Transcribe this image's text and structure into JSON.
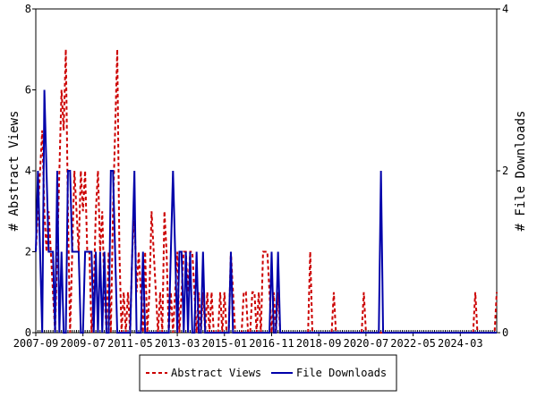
{
  "chart_data": {
    "type": "line",
    "ylabel": "# Abstract Views",
    "y2label": "# File Downloads",
    "x": [
      "2007-09",
      "2007-10",
      "2007-11",
      "2007-12",
      "2008-01",
      "2008-02",
      "2008-03",
      "2008-04",
      "2008-05",
      "2008-06",
      "2008-07",
      "2008-08",
      "2008-09",
      "2008-10",
      "2008-11",
      "2008-12",
      "2009-01",
      "2009-02",
      "2009-03",
      "2009-04",
      "2009-05",
      "2009-06",
      "2009-07",
      "2009-08",
      "2009-09",
      "2009-10",
      "2009-11",
      "2009-12",
      "2010-01",
      "2010-02",
      "2010-03",
      "2010-04",
      "2010-05",
      "2010-06",
      "2010-07",
      "2010-08",
      "2010-09",
      "2010-10",
      "2010-11",
      "2010-12",
      "2011-01",
      "2011-02",
      "2011-03",
      "2011-04",
      "2011-05",
      "2011-06",
      "2011-07",
      "2011-08",
      "2011-09",
      "2011-10",
      "2011-11",
      "2011-12",
      "2012-01",
      "2012-02",
      "2012-03",
      "2012-04",
      "2012-05",
      "2012-06",
      "2012-07",
      "2012-08",
      "2012-09",
      "2012-10",
      "2012-11",
      "2012-12",
      "2013-01",
      "2013-02",
      "2013-03",
      "2013-04",
      "2013-05",
      "2013-06",
      "2013-07",
      "2013-08",
      "2013-09",
      "2013-10",
      "2013-11",
      "2013-12",
      "2014-01",
      "2014-02",
      "2014-03",
      "2014-04",
      "2014-05",
      "2014-06",
      "2014-07",
      "2014-08",
      "2014-09",
      "2014-10",
      "2014-11",
      "2014-12",
      "2015-01",
      "2015-02",
      "2015-03",
      "2015-04",
      "2015-05",
      "2015-06",
      "2015-07",
      "2015-08",
      "2015-09",
      "2015-10",
      "2015-11",
      "2015-12",
      "2016-01",
      "2016-02",
      "2016-03",
      "2016-04",
      "2016-05",
      "2016-06",
      "2016-07",
      "2016-08",
      "2016-09",
      "2016-10",
      "2016-11",
      "2016-12",
      "2017-01",
      "2017-02",
      "2017-03",
      "2017-04",
      "2017-05",
      "2017-06",
      "2017-07",
      "2017-08",
      "2017-09",
      "2017-10",
      "2017-11",
      "2017-12",
      "2018-01",
      "2018-02",
      "2018-03",
      "2018-04",
      "2018-05",
      "2018-06",
      "2018-07",
      "2018-08",
      "2018-09",
      "2018-10",
      "2018-11",
      "2018-12",
      "2019-01",
      "2019-02",
      "2019-03",
      "2019-04",
      "2019-05",
      "2019-06",
      "2019-07",
      "2019-08",
      "2019-09",
      "2019-10",
      "2019-11",
      "2019-12",
      "2020-01",
      "2020-02",
      "2020-03",
      "2020-04",
      "2020-05",
      "2020-06",
      "2020-07",
      "2020-08",
      "2020-09",
      "2020-10",
      "2020-11",
      "2020-12",
      "2021-01",
      "2021-02",
      "2021-03",
      "2021-04",
      "2021-05",
      "2021-06",
      "2021-07",
      "2021-08",
      "2021-09",
      "2021-10",
      "2021-11",
      "2021-12",
      "2022-01",
      "2022-02",
      "2022-03",
      "2022-04",
      "2022-05",
      "2022-06",
      "2022-07",
      "2022-08",
      "2022-09",
      "2022-10",
      "2022-11",
      "2022-12",
      "2023-01",
      "2023-02",
      "2023-03",
      "2023-04",
      "2023-05",
      "2023-06",
      "2023-07",
      "2023-08",
      "2023-09",
      "2023-10",
      "2023-11",
      "2023-12",
      "2024-01",
      "2024-02",
      "2024-03",
      "2024-04",
      "2024-05",
      "2024-06",
      "2024-07",
      "2024-08",
      "2024-09",
      "2024-10",
      "2024-11",
      "2024-12",
      "2025-01",
      "2025-02",
      "2025-03",
      "2025-04",
      "2025-05",
      "2025-06",
      "2025-07",
      "2025-08"
    ],
    "xticks": [
      "2007-09",
      "2009-07",
      "2011-05",
      "2013-03",
      "2015-01",
      "2016-11",
      "2018-09",
      "2020-07",
      "2022-05",
      "2024-03"
    ],
    "ylim": [
      0,
      8
    ],
    "yticks": [
      0,
      2,
      4,
      6,
      8
    ],
    "y2lim": [
      0,
      4
    ],
    "y2ticks": [
      0,
      2,
      4
    ],
    "series": [
      {
        "name": "Abstract Views",
        "color": "#cc0000",
        "dashed": true,
        "values": [
          2,
          3,
          4,
          5,
          3,
          2,
          3,
          2,
          1,
          0,
          2,
          4,
          6,
          5,
          7,
          3,
          0,
          2,
          4,
          3,
          2,
          4,
          3,
          4,
          2,
          2,
          0,
          1,
          3,
          4,
          2,
          3,
          1,
          0,
          2,
          0,
          3,
          5,
          7,
          2,
          0,
          1,
          0,
          1,
          0,
          2,
          3,
          1,
          2,
          1,
          0,
          2,
          0,
          1,
          3,
          2,
          1,
          0,
          1,
          0,
          3,
          2,
          0,
          1,
          0,
          1,
          2,
          0,
          1,
          2,
          2,
          1,
          2,
          2,
          1,
          0,
          1,
          0,
          1,
          0,
          1,
          0,
          1,
          0,
          0,
          0,
          1,
          0,
          1,
          0,
          0,
          2,
          1,
          0,
          0,
          0,
          0,
          1,
          1,
          0,
          0,
          1,
          1,
          0,
          1,
          0,
          2,
          2,
          2,
          1,
          0,
          1,
          0,
          1,
          0,
          0,
          0,
          0,
          0,
          0,
          0,
          0,
          0,
          0,
          0,
          0,
          0,
          0,
          2,
          0,
          0,
          0,
          0,
          0,
          0,
          0,
          0,
          0,
          0,
          1,
          0,
          0,
          0,
          0,
          0,
          0,
          0,
          0,
          0,
          0,
          0,
          0,
          0,
          1,
          0,
          0,
          0,
          0,
          0,
          0,
          0,
          0,
          0,
          0,
          0,
          0,
          0,
          0,
          0,
          0,
          0,
          0,
          0,
          0,
          0,
          0,
          0,
          0,
          0,
          0,
          0,
          0,
          0,
          0,
          0,
          0,
          0,
          0,
          0,
          0,
          0,
          0,
          0,
          0,
          0,
          0,
          0,
          0,
          0,
          0,
          0,
          0,
          0,
          0,
          0,
          1,
          0,
          0,
          0,
          0,
          0,
          0,
          0,
          0,
          0,
          1
        ]
      },
      {
        "name": "File Downloads",
        "color": "#0000aa",
        "dashed": false,
        "axis": "y2",
        "values": [
          1,
          2,
          1,
          0,
          3,
          2,
          1,
          1,
          1,
          0,
          2,
          0,
          1,
          0,
          0,
          2,
          2,
          1,
          1,
          1,
          1,
          0,
          0,
          1,
          1,
          1,
          1,
          0,
          1,
          0,
          1,
          0,
          1,
          0,
          0,
          2,
          2,
          1,
          0,
          0,
          0,
          0,
          0,
          0,
          0,
          1,
          2,
          0,
          0,
          0,
          1,
          0,
          0,
          0,
          0,
          0,
          0,
          0,
          0,
          0,
          0,
          0,
          0,
          1,
          2,
          1,
          0,
          1,
          1,
          0,
          1,
          0,
          1,
          0,
          0,
          1,
          0,
          0,
          1,
          0,
          0,
          0,
          0,
          0,
          0,
          0,
          0,
          0,
          0,
          0,
          0,
          1,
          0,
          0,
          0,
          0,
          0,
          0,
          0,
          0,
          0,
          0,
          0,
          0,
          0,
          0,
          0,
          0,
          0,
          0,
          1,
          0,
          0,
          1,
          0,
          0,
          0,
          0,
          0,
          0,
          0,
          0,
          0,
          0,
          0,
          0,
          0,
          0,
          0,
          0,
          0,
          0,
          0,
          0,
          0,
          0,
          0,
          0,
          0,
          0,
          0,
          0,
          0,
          0,
          0,
          0,
          0,
          0,
          0,
          0,
          0,
          0,
          0,
          0,
          0,
          0,
          0,
          0,
          0,
          0,
          0,
          2,
          0,
          0,
          0,
          0,
          0,
          0,
          0,
          0,
          0,
          0,
          0,
          0,
          0,
          0,
          0,
          0,
          0,
          0,
          0,
          0,
          0,
          0,
          0,
          0,
          0,
          0,
          0,
          0,
          0,
          0,
          0,
          0,
          0,
          0,
          0,
          0,
          0,
          0,
          0,
          0,
          0,
          0,
          0,
          0,
          0,
          0,
          0,
          0,
          0,
          0,
          0,
          0,
          0,
          0
        ]
      }
    ]
  }
}
